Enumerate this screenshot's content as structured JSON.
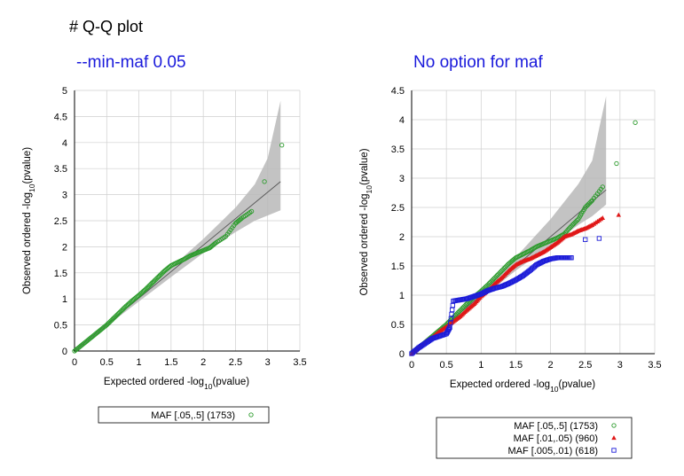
{
  "page": {
    "heading": "# Q-Q plot"
  },
  "chart_data": [
    {
      "type": "scatter",
      "title": "--min-maf 0.05",
      "xlabel": "Expected ordered -log10(pvalue)",
      "ylabel": "Observed ordered -log10(pvalue)",
      "xlim": [
        0,
        3.5
      ],
      "ylim": [
        0,
        5
      ],
      "xticks": [
        "0",
        "0.5",
        "1",
        "1.5",
        "2",
        "2.5",
        "3",
        "3.5"
      ],
      "yticks": [
        "0",
        "0.5",
        "1",
        "1.5",
        "2",
        "2.5",
        "3",
        "3.5",
        "4",
        "4.5",
        "5"
      ],
      "grid": true,
      "legend_position": "bottom",
      "confidence_band": {
        "x": [
          0,
          0.5,
          1,
          1.5,
          2,
          2.5,
          2.8,
          3.0,
          3.2
        ],
        "lower": [
          0,
          0.48,
          0.95,
          1.42,
          1.88,
          2.28,
          2.5,
          2.6,
          2.7
        ],
        "upper": [
          0,
          0.52,
          1.05,
          1.6,
          2.15,
          2.75,
          3.2,
          3.7,
          4.8
        ]
      },
      "reference_line": {
        "x": [
          0,
          3.2
        ],
        "y": [
          0,
          3.25
        ]
      },
      "series": [
        {
          "name": "MAF [.05,.5] (1753)",
          "color": "#2e9c2e",
          "marker": "circle",
          "x": [
            0.0,
            0.1,
            0.2,
            0.3,
            0.4,
            0.5,
            0.6,
            0.7,
            0.8,
            0.9,
            1.0,
            1.1,
            1.2,
            1.3,
            1.4,
            1.5,
            1.6,
            1.7,
            1.8,
            1.9,
            2.0,
            2.1,
            2.2,
            2.35,
            2.5,
            2.6,
            2.75,
            2.95,
            3.22
          ],
          "y": [
            0.0,
            0.1,
            0.2,
            0.3,
            0.4,
            0.5,
            0.62,
            0.74,
            0.86,
            0.97,
            1.07,
            1.18,
            1.3,
            1.42,
            1.54,
            1.64,
            1.7,
            1.76,
            1.83,
            1.88,
            1.93,
            1.98,
            2.08,
            2.2,
            2.45,
            2.55,
            2.68,
            3.25,
            3.95
          ]
        }
      ],
      "legend": [
        "MAF [.05,.5] (1753)"
      ]
    },
    {
      "type": "scatter",
      "title": "No option for maf",
      "xlabel": "Expected ordered -log10(pvalue)",
      "ylabel": "Observed ordered -log10(pvalue)",
      "xlim": [
        0,
        3.5
      ],
      "ylim": [
        0,
        4.5
      ],
      "xticks": [
        "0",
        "0.5",
        "1",
        "1.5",
        "2",
        "2.5",
        "3",
        "3.5"
      ],
      "yticks": [
        "0",
        "0.5",
        "1",
        "1.5",
        "2",
        "2.5",
        "3",
        "3.5",
        "4",
        "4.5"
      ],
      "grid": true,
      "legend_position": "bottom",
      "confidence_band": {
        "x": [
          0,
          0.5,
          1,
          1.5,
          2,
          2.4,
          2.6,
          2.8
        ],
        "lower": [
          0,
          0.45,
          0.95,
          1.42,
          1.85,
          2.2,
          2.35,
          2.55
        ],
        "upper": [
          0,
          0.55,
          1.08,
          1.65,
          2.3,
          2.9,
          3.3,
          4.4
        ]
      },
      "reference_line": {
        "x": [
          0,
          2.8
        ],
        "y": [
          0,
          2.8
        ]
      },
      "series": [
        {
          "name": "MAF [.05,.5] (1753)",
          "color": "#2e9c2e",
          "marker": "circle",
          "x": [
            0.0,
            0.1,
            0.2,
            0.3,
            0.4,
            0.5,
            0.6,
            0.7,
            0.8,
            0.9,
            1.0,
            1.1,
            1.2,
            1.3,
            1.4,
            1.5,
            1.6,
            1.7,
            1.8,
            1.9,
            2.0,
            2.1,
            2.2,
            2.3,
            2.4,
            2.5,
            2.6,
            2.75,
            2.95,
            3.22
          ],
          "y": [
            0.0,
            0.1,
            0.2,
            0.3,
            0.4,
            0.5,
            0.62,
            0.74,
            0.86,
            0.97,
            1.07,
            1.18,
            1.3,
            1.42,
            1.54,
            1.64,
            1.7,
            1.76,
            1.83,
            1.88,
            1.93,
            1.98,
            2.05,
            2.18,
            2.3,
            2.5,
            2.62,
            2.85,
            3.25,
            3.95
          ]
        },
        {
          "name": "MAF [.01,.05) (960)",
          "color": "#e01818",
          "marker": "triangle",
          "x": [
            0.0,
            0.1,
            0.2,
            0.3,
            0.4,
            0.5,
            0.6,
            0.7,
            0.8,
            0.9,
            1.0,
            1.1,
            1.2,
            1.3,
            1.4,
            1.5,
            1.6,
            1.7,
            1.8,
            1.9,
            2.0,
            2.1,
            2.2,
            2.3,
            2.4,
            2.5,
            2.6,
            2.75,
            2.98
          ],
          "y": [
            0.0,
            0.1,
            0.2,
            0.28,
            0.38,
            0.46,
            0.55,
            0.64,
            0.75,
            0.85,
            0.98,
            1.08,
            1.2,
            1.3,
            1.42,
            1.52,
            1.58,
            1.62,
            1.68,
            1.74,
            1.82,
            1.9,
            2.0,
            2.04,
            2.1,
            2.14,
            2.2,
            2.32,
            2.37
          ]
        },
        {
          "name": "MAF [.005,.01) (618)",
          "color": "#1c1cd8",
          "marker": "square",
          "x": [
            0.0,
            0.1,
            0.2,
            0.3,
            0.4,
            0.5,
            0.55,
            0.6,
            0.7,
            0.8,
            0.9,
            1.0,
            1.1,
            1.2,
            1.3,
            1.4,
            1.5,
            1.6,
            1.7,
            1.8,
            1.9,
            2.0,
            2.1,
            2.2,
            2.3,
            2.5,
            2.7
          ],
          "y": [
            0.0,
            0.1,
            0.18,
            0.26,
            0.3,
            0.34,
            0.45,
            0.9,
            0.92,
            0.94,
            0.98,
            1.02,
            1.08,
            1.12,
            1.15,
            1.2,
            1.26,
            1.33,
            1.42,
            1.52,
            1.58,
            1.62,
            1.64,
            1.64,
            1.64,
            1.95,
            1.97
          ]
        }
      ],
      "legend": [
        "MAF [.05,.5] (1753)",
        "MAF [.01,.05) (960)",
        "MAF [.005,.01) (618)"
      ]
    }
  ]
}
